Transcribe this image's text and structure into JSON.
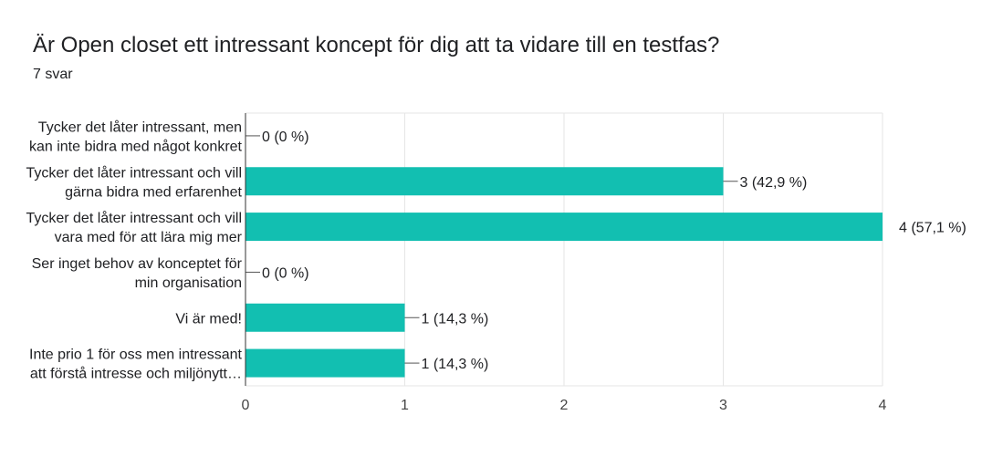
{
  "header": {
    "title": "Är Open closet ett intressant koncept för dig att ta vidare till en testfas?",
    "subtitle": "7 svar"
  },
  "colors": {
    "bar": "#12bfb1",
    "grid": "#e6e6e6",
    "axis": "#333333"
  },
  "chart_data": {
    "type": "bar",
    "orientation": "horizontal",
    "title": "Är Open closet ett intressant koncept för dig att ta vidare till en testfas?",
    "subtitle": "7 svar",
    "categories": [
      [
        "Tycker det låter intressant, men",
        "kan inte bidra med något konkret"
      ],
      [
        "Tycker det låter intressant och vill",
        "gärna bidra med erfarenhet"
      ],
      [
        "Tycker det låter intressant och vill",
        "vara med för att lära mig mer"
      ],
      [
        "Ser inget behov av konceptet för",
        "min organisation"
      ],
      [
        "Vi är med!"
      ],
      [
        "Inte prio 1 för oss men intressant",
        "att förstå intresse och miljönytt…"
      ]
    ],
    "values": [
      0,
      3,
      4,
      0,
      1,
      1
    ],
    "value_labels": [
      "0 (0 %)",
      "3 (42,9 %)",
      "4 (57,1 %)",
      "0 (0 %)",
      "1 (14,3 %)",
      "1 (14,3 %)"
    ],
    "xlim": [
      0,
      4
    ],
    "xticks": [
      "0",
      "1",
      "2",
      "3",
      "4"
    ],
    "grid": true,
    "legend": "none"
  }
}
